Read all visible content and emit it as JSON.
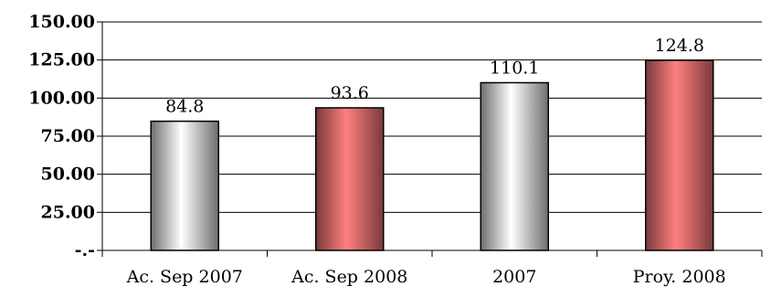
{
  "chart_data": {
    "type": "bar",
    "categories": [
      "Ac. Sep 2007",
      "Ac. Sep 2008",
      "2007",
      "Proy. 2008"
    ],
    "values": [
      84.8,
      93.6,
      110.1,
      124.8
    ],
    "data_labels": [
      "84.8",
      "93.6",
      "110.1",
      "124.8"
    ],
    "bar_styles": [
      "silver",
      "red",
      "silver",
      "red"
    ],
    "colors": {
      "silver_dark": "#7f7f7f",
      "silver_light": "#ffffff",
      "red_dark": "#7a3a3a",
      "red_light": "#ff8080",
      "plot_bg": "#c0c0c0",
      "grid": "#000000"
    },
    "ylim": [
      0,
      150
    ],
    "yticks": [
      0,
      25,
      50,
      75,
      100,
      125,
      150
    ],
    "ytick_labels": [
      "-.-",
      "25.00",
      "50.00",
      "75.00",
      "100.00",
      "125.00",
      "150.00"
    ],
    "grid": true,
    "legend": "none"
  }
}
